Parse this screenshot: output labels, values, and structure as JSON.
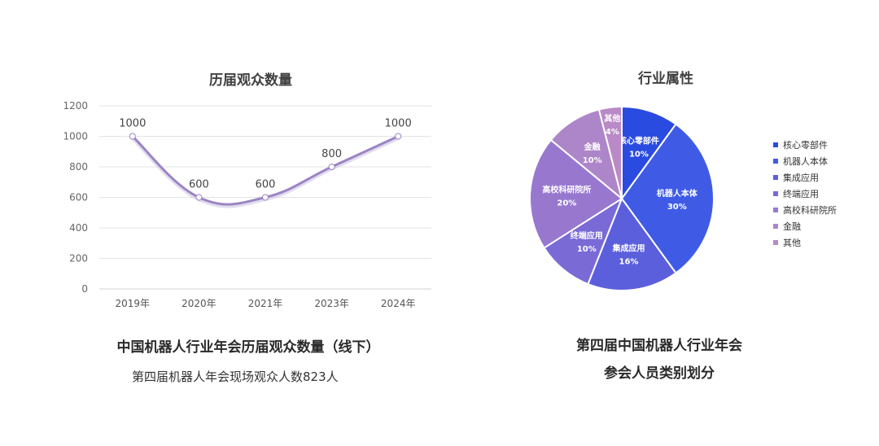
{
  "line_chart": {
    "title": "历届观众数量",
    "caption": "中国机器人行业年会历届观众数量（线下）",
    "subcaption": "第四届机器人年会现场观众人数823人"
  },
  "pie_chart": {
    "title": "行业属性",
    "caption_line1": "第四届中国机器人行业年会",
    "caption_line2": "参会人员类别划分"
  },
  "chart_data": [
    {
      "type": "line",
      "title": "历届观众数量",
      "categories": [
        "2019年",
        "2020年",
        "2021年",
        "2023年",
        "2024年"
      ],
      "values": [
        1000,
        600,
        600,
        800,
        1000
      ],
      "data_labels": [
        "1000",
        "600",
        "600",
        "800",
        "1000"
      ],
      "ylim": [
        0,
        1200
      ],
      "yticks": [
        0,
        200,
        400,
        600,
        800,
        1000,
        1200
      ],
      "grid": true,
      "smooth": true,
      "line_color": "#9b85c4"
    },
    {
      "type": "pie",
      "title": "行业属性",
      "legend_position": "right",
      "slices": [
        {
          "label": "核心零部件",
          "value": 10,
          "pct_label": "10%",
          "color": "#2a4be0"
        },
        {
          "label": "机器人本体",
          "value": 30,
          "pct_label": "30%",
          "color": "#3f5be6"
        },
        {
          "label": "集成应用",
          "value": 16,
          "pct_label": "16%",
          "color": "#5c5fdc"
        },
        {
          "label": "终端应用",
          "value": 10,
          "pct_label": "10%",
          "color": "#7a6ad6"
        },
        {
          "label": "高校科研院所",
          "value": 20,
          "pct_label": "20%",
          "color": "#9878cf"
        },
        {
          "label": "金融",
          "value": 10,
          "pct_label": "10%",
          "color": "#ad86c9"
        },
        {
          "label": "其他",
          "value": 4,
          "pct_label": "4%",
          "color": "#b98ac7"
        }
      ]
    }
  ]
}
